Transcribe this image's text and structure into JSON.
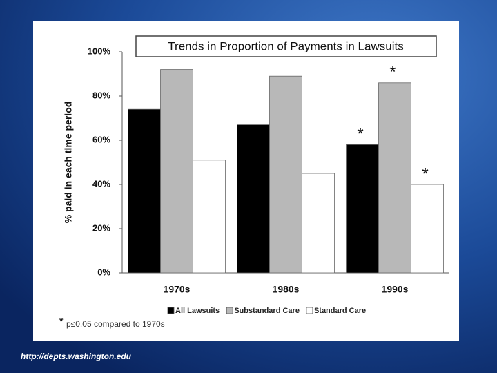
{
  "source": "http://depts.washington.edu",
  "chart_data": {
    "type": "bar",
    "title": "Trends in Proportion of Payments in Lawsuits",
    "y_label": "% paid in each time period",
    "categories": [
      "1970s",
      "1980s",
      "1990s"
    ],
    "series": [
      {
        "name": "All Lawsuits",
        "color": "#000000",
        "values": [
          74,
          67,
          58
        ],
        "markers": [
          null,
          null,
          "*"
        ]
      },
      {
        "name": "Substandard Care",
        "color": "#b8b8b8",
        "values": [
          92,
          89,
          86
        ],
        "markers": [
          null,
          null,
          "*"
        ]
      },
      {
        "name": "Standard Care",
        "color": "#ffffff",
        "values": [
          51,
          45,
          40
        ],
        "markers": [
          null,
          null,
          "*"
        ]
      }
    ],
    "ylim": [
      0,
      100
    ],
    "yticks": [
      {
        "value": 0,
        "label": "0%"
      },
      {
        "value": 20,
        "label": "20%"
      },
      {
        "value": 40,
        "label": "40%"
      },
      {
        "value": 60,
        "label": "60%"
      },
      {
        "value": 80,
        "label": "80%"
      },
      {
        "value": 100,
        "label": "100%"
      }
    ],
    "footnote_symbol": "*",
    "footnote": "p≤0.05 compared to 1970s"
  }
}
